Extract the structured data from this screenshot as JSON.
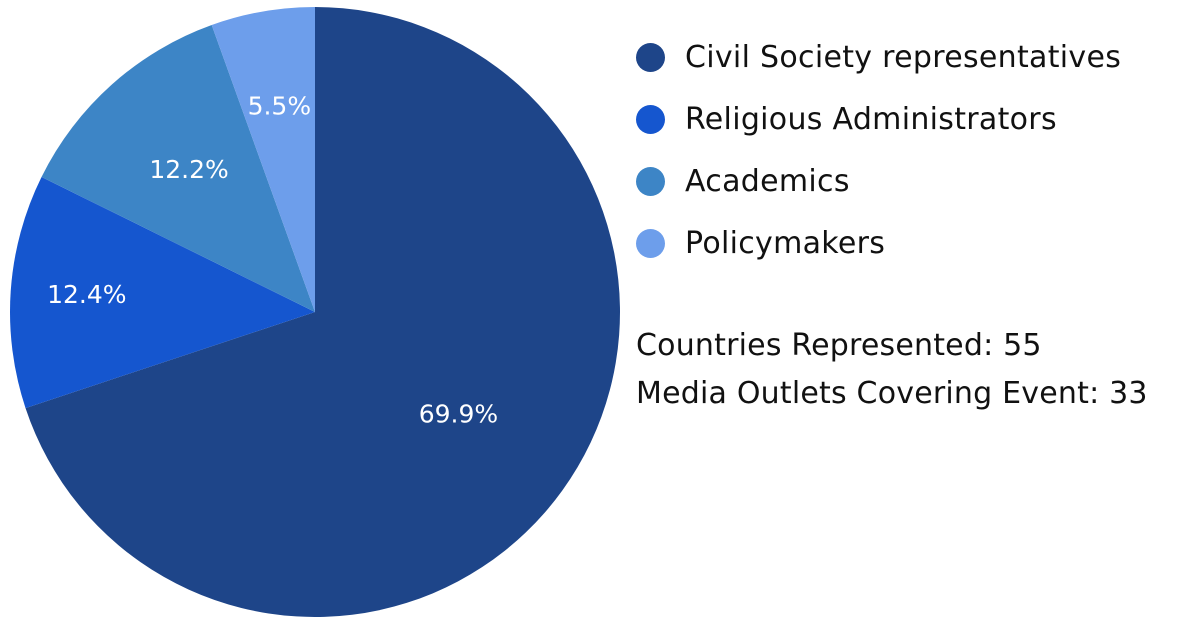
{
  "chart_data": {
    "type": "pie",
    "categories": [
      "Civil Society representatives",
      "Religious Administrators",
      "Academics",
      "Policymakers"
    ],
    "values": [
      69.9,
      12.4,
      12.2,
      5.5
    ],
    "value_labels": [
      "69.9%",
      "12.4%",
      "12.2%",
      "5.5%"
    ],
    "colors": [
      "#1e4589",
      "#1556cf",
      "#3d85c6",
      "#6d9eeb"
    ],
    "start_angle": "12 o'clock",
    "direction": "clockwise",
    "legend_position": "right"
  },
  "stats": {
    "countries": "Countries Represented: 55",
    "media": "Media Outlets Covering Event: 33"
  }
}
